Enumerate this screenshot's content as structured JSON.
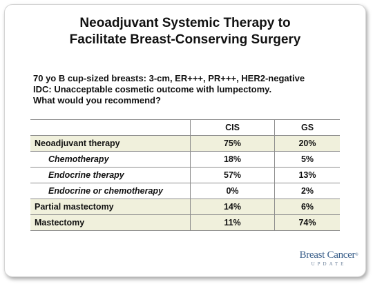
{
  "title": {
    "line1": "Neoadjuvant Systemic Therapy to",
    "line2": "Facilitate Breast-Conserving Surgery"
  },
  "question": {
    "line1": "70 yo B cup-sized breasts: 3-cm, ER+++, PR+++, HER2-negative",
    "line2": "IDC: Unacceptable cosmetic outcome with lumpectomy.",
    "line3": "What would you recommend?"
  },
  "table": {
    "headers": [
      "",
      "CIS",
      "GS"
    ],
    "rows": [
      {
        "label": "Neoadjuvant therapy",
        "cis": "75%",
        "gs": "20%"
      },
      {
        "label": "Chemotherapy",
        "cis": "18%",
        "gs": "5%"
      },
      {
        "label": "Endocrine therapy",
        "cis": "57%",
        "gs": "13%"
      },
      {
        "label": "Endocrine or chemotherapy",
        "cis": "0%",
        "gs": "2%"
      },
      {
        "label": "Partial mastectomy",
        "cis": "14%",
        "gs": "6%"
      },
      {
        "label": "Mastectomy",
        "cis": "11%",
        "gs": "74%"
      }
    ]
  },
  "logo": {
    "main": "Breast Cancer",
    "registered": "®",
    "sub": "UPDATE"
  },
  "colors": {
    "row_shade": "#f0f0dc",
    "logo_blue": "#3a5f8a"
  }
}
